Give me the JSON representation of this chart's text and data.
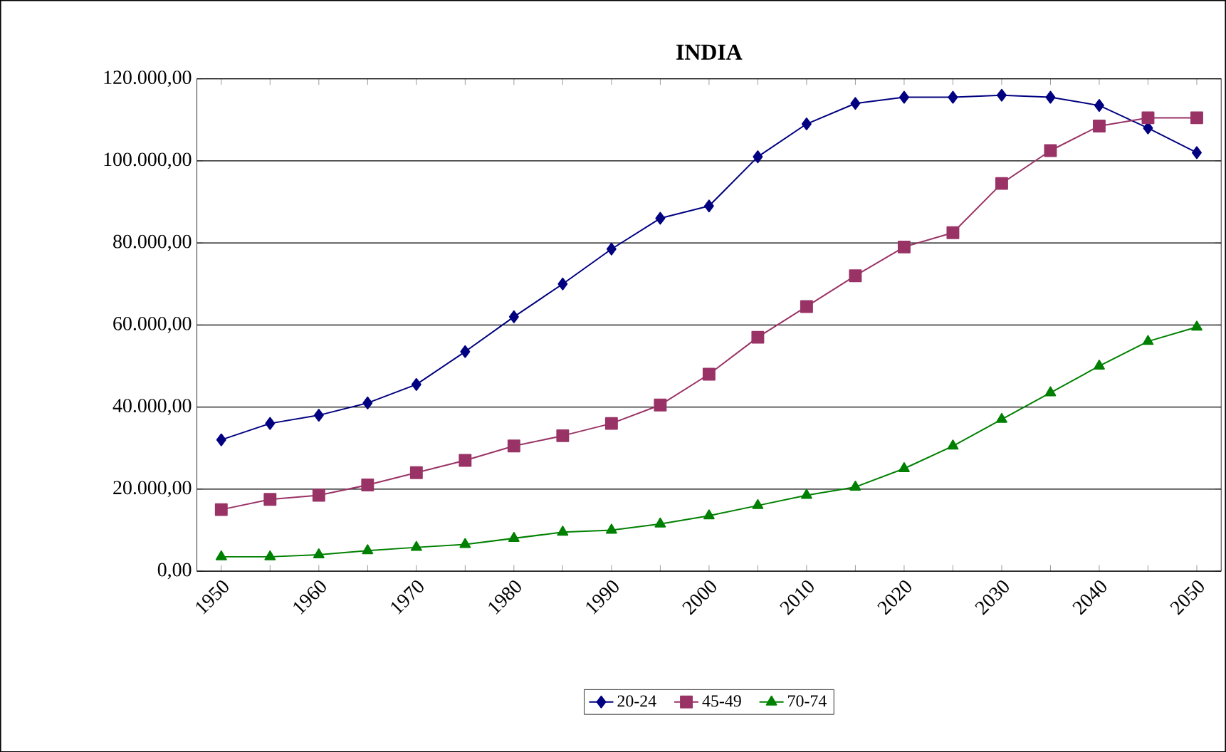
{
  "chart_data": {
    "type": "line",
    "title": "INDIA",
    "categories": [
      "1950",
      null,
      "1960",
      null,
      "1970",
      null,
      "1980",
      null,
      "1990",
      null,
      "2000",
      null,
      "2010",
      null,
      "2020",
      null,
      "2030",
      null,
      "2040",
      null,
      "2050"
    ],
    "series": [
      {
        "name": "20-24",
        "color": "#000080",
        "marker": "diamond",
        "values": [
          32000,
          36000,
          38000,
          41000,
          45500,
          53500,
          62000,
          70000,
          78500,
          86000,
          89000,
          101000,
          109000,
          114000,
          115500,
          115500,
          116000,
          115500,
          113500,
          108000,
          102000
        ]
      },
      {
        "name": "45-49",
        "color": "#993366",
        "marker": "square",
        "values": [
          15000,
          17500,
          18500,
          21000,
          24000,
          27000,
          30500,
          33000,
          36000,
          40500,
          48000,
          57000,
          64500,
          72000,
          79000,
          82500,
          94500,
          102500,
          108500,
          110500,
          110500
        ]
      },
      {
        "name": "70-74",
        "color": "#008000",
        "marker": "triangle",
        "values": [
          3500,
          3500,
          4000,
          5000,
          5800,
          6500,
          8000,
          9500,
          10000,
          11500,
          13500,
          16000,
          18500,
          20500,
          25000,
          30500,
          37000,
          43500,
          50000,
          56000,
          59500
        ]
      }
    ],
    "ylim": [
      0,
      120000
    ],
    "yticks": [
      {
        "value": 0,
        "label": "0,00"
      },
      {
        "value": 20000,
        "label": "20.000,00"
      },
      {
        "value": 40000,
        "label": "40.000,00"
      },
      {
        "value": 60000,
        "label": "60.000,00"
      },
      {
        "value": 80000,
        "label": "80.000,00"
      },
      {
        "value": 100000,
        "label": "100.000,00"
      },
      {
        "value": 120000,
        "label": "120.000,00"
      }
    ],
    "grid": "y",
    "legend": "bottom",
    "line_style": "solid"
  }
}
